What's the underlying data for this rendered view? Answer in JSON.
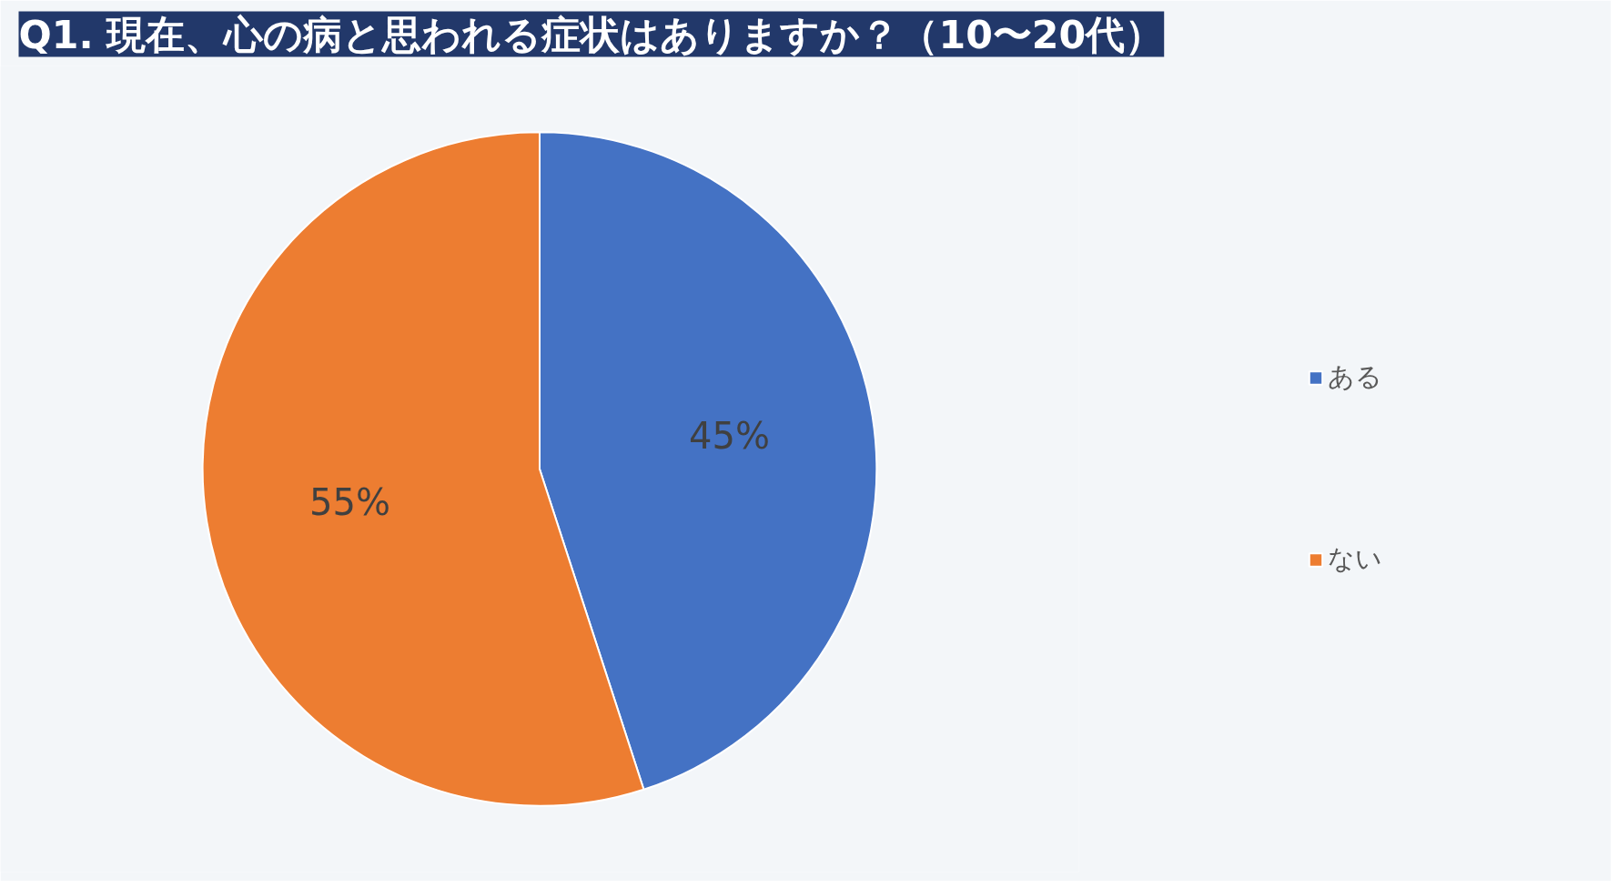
{
  "chart_data": {
    "type": "pie",
    "title": "Q1. 現在、心の病と思われる症状はありますか？（10〜20代）",
    "categories": [
      "ある",
      "ない"
    ],
    "values": [
      45,
      55
    ],
    "colors": [
      "#4472c4",
      "#ed7d31"
    ],
    "value_labels": [
      "45%",
      "55%"
    ],
    "legend": "right"
  }
}
